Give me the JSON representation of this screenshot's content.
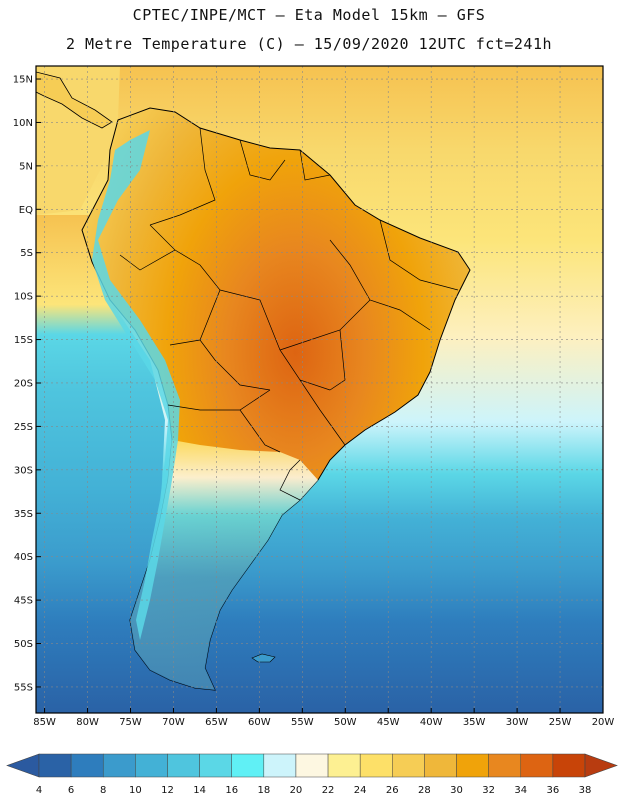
{
  "title": {
    "line1": "CPTEC/INPE/MCT –  Eta Model 15km – GFS",
    "line2": "2 Metre Temperature (C) – 15/09/2020 12UTC fct=241h"
  },
  "axes": {
    "lat_labels": [
      "15N",
      "10N",
      "5N",
      "EQ",
      "5S",
      "10S",
      "15S",
      "20S",
      "25S",
      "30S",
      "35S",
      "40S",
      "45S",
      "50S",
      "55S"
    ],
    "lat_values": [
      15,
      10,
      5,
      0,
      -5,
      -10,
      -15,
      -20,
      -25,
      -30,
      -35,
      -40,
      -45,
      -50,
      -55
    ],
    "lon_labels": [
      "85W",
      "80W",
      "75W",
      "70W",
      "65W",
      "60W",
      "55W",
      "50W",
      "45W",
      "40W",
      "35W",
      "30W",
      "25W",
      "20W"
    ],
    "lon_values": [
      -85,
      -80,
      -75,
      -70,
      -65,
      -60,
      -55,
      -50,
      -45,
      -40,
      -35,
      -30,
      -25,
      -20
    ],
    "lat_range": [
      -58,
      16.5
    ],
    "lon_range": [
      -86,
      -20
    ]
  },
  "colorbar": {
    "labels": [
      "4",
      "6",
      "8",
      "10",
      "12",
      "14",
      "16",
      "18",
      "20",
      "22",
      "24",
      "26",
      "28",
      "30",
      "32",
      "34",
      "36",
      "38"
    ],
    "colors": [
      "#2a62a6",
      "#2e7dbd",
      "#3b9bcc",
      "#43b1d6",
      "#4fc5de",
      "#5bd7e6",
      "#60f0f5",
      "#cdf4fb",
      "#fdf7e1",
      "#fdf092",
      "#fde068",
      "#f6cd55",
      "#efb73a",
      "#f0a30a",
      "#e8871f",
      "#dd6412",
      "#c84408"
    ],
    "below_color": "#2b5aa0",
    "above_color": "#b83c10"
  }
}
